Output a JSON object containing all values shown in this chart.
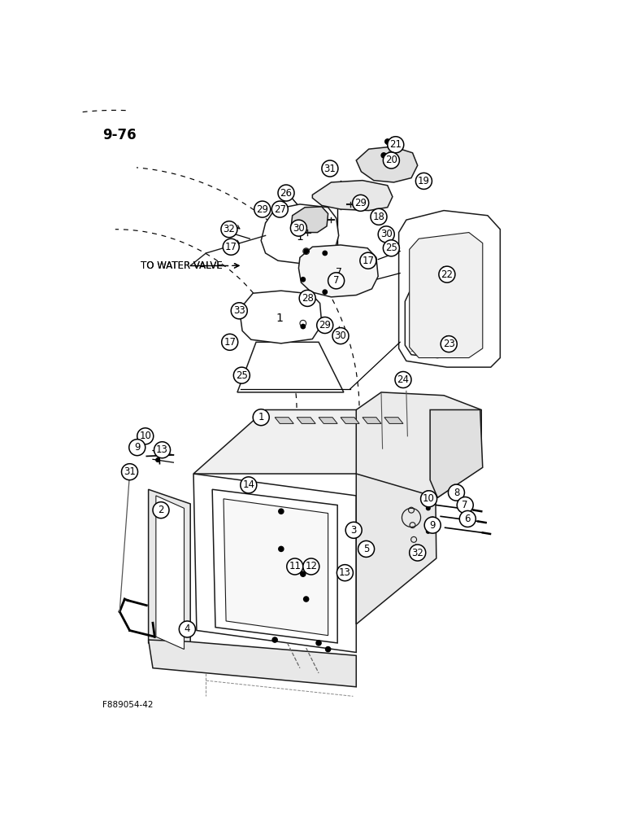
{
  "page_label": "9-76",
  "figure_label": "F889054-42",
  "background_color": "#ffffff",
  "line_color": "#1a1a1a",
  "water_valve_text": "TO WATER VALVE",
  "top_labels": [
    [
      "21",
      503,
      75
    ],
    [
      "20",
      496,
      100
    ],
    [
      "31",
      398,
      113
    ],
    [
      "19",
      548,
      133
    ],
    [
      "26",
      328,
      152
    ],
    [
      "29",
      290,
      178
    ],
    [
      "27",
      318,
      178
    ],
    [
      "29",
      447,
      168
    ],
    [
      "18",
      476,
      190
    ],
    [
      "32",
      237,
      210
    ],
    [
      "30",
      348,
      208
    ],
    [
      "30",
      488,
      218
    ],
    [
      "17",
      240,
      238
    ],
    [
      "25",
      496,
      240
    ],
    [
      "17",
      459,
      260
    ],
    [
      "7",
      408,
      292
    ],
    [
      "22",
      585,
      282
    ],
    [
      "28",
      362,
      320
    ],
    [
      "33",
      253,
      340
    ],
    [
      "29",
      390,
      363
    ],
    [
      "30",
      415,
      380
    ],
    [
      "17",
      238,
      390
    ],
    [
      "23",
      588,
      393
    ],
    [
      "25",
      257,
      443
    ],
    [
      "24",
      515,
      450
    ]
  ],
  "bottom_labels": [
    [
      "10",
      103,
      540
    ],
    [
      "9",
      90,
      558
    ],
    [
      "13",
      130,
      562
    ],
    [
      "31",
      78,
      597
    ],
    [
      "1",
      288,
      510
    ],
    [
      "14",
      268,
      618
    ],
    [
      "2",
      128,
      658
    ],
    [
      "8",
      600,
      630
    ],
    [
      "10",
      556,
      640
    ],
    [
      "7",
      614,
      650
    ],
    [
      "3",
      436,
      690
    ],
    [
      "9",
      562,
      682
    ],
    [
      "6",
      618,
      672
    ],
    [
      "5",
      456,
      720
    ],
    [
      "32",
      538,
      726
    ],
    [
      "11",
      342,
      748
    ],
    [
      "12",
      368,
      748
    ],
    [
      "13",
      422,
      758
    ],
    [
      "4",
      170,
      848
    ]
  ]
}
